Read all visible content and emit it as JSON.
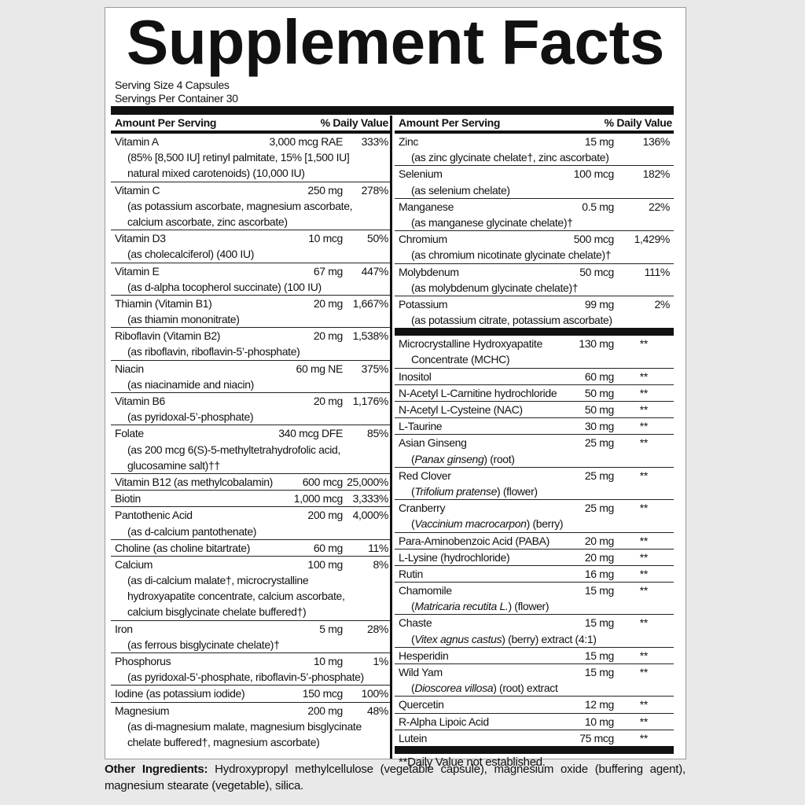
{
  "title": "Supplement Facts",
  "serving_size": "Serving Size 4 Capsules",
  "servings_per_container": "Servings Per Container 30",
  "header": {
    "amount_per_serving": "Amount Per Serving",
    "daily_value": "% Daily Value"
  },
  "left_rows": [
    {
      "name": "Vitamin A",
      "amount": "3,000 mcg RAE",
      "dv": "333%",
      "sub": [
        [
          "(85% [8,500 IU] retinyl palmitate, 15% [1,500 IU]"
        ],
        [
          "natural mixed carotenoids) (10,000 IU)"
        ]
      ]
    },
    {
      "name": "Vitamin C",
      "amount": "250 mg",
      "dv": "278%",
      "sub": [
        [
          "(as potassium ascorbate, magnesium ascorbate,"
        ],
        [
          "calcium ascorbate, zinc ascorbate)"
        ]
      ]
    },
    {
      "name": "Vitamin D3",
      "amount": "10 mcg",
      "dv": "50%",
      "sub": [
        [
          "(as cholecalciferol) (400 IU)"
        ]
      ]
    },
    {
      "name": "Vitamin E",
      "amount": "67 mg",
      "dv": "447%",
      "sub": [
        [
          "(as d-alpha tocopherol succinate) (100 IU)"
        ]
      ]
    },
    {
      "name": "Thiamin (Vitamin B1)",
      "amount": "20 mg",
      "dv": "1,667%",
      "sub": [
        [
          "(as thiamin mononitrate)"
        ]
      ]
    },
    {
      "name": "Riboflavin (Vitamin B2)",
      "amount": "20 mg",
      "dv": "1,538%",
      "sub": [
        [
          "(as riboflavin, riboflavin-5’-phosphate)"
        ]
      ]
    },
    {
      "name": "Niacin",
      "amount": "60 mg NE",
      "dv": "375%",
      "sub": [
        [
          "(as niacinamide and niacin)"
        ]
      ]
    },
    {
      "name": "Vitamin B6",
      "amount": "20 mg",
      "dv": "1,176%",
      "sub": [
        [
          "(as pyridoxal-5’-phosphate)"
        ]
      ]
    },
    {
      "name": "Folate",
      "amount": "340 mcg DFE",
      "dv": "85%",
      "sub": [
        [
          "(as 200 mcg 6(S)-5-methyltetrahydrofolic acid,"
        ],
        [
          "glucosamine salt)††"
        ]
      ]
    },
    {
      "name": "Vitamin B12 (as methylcobalamin)",
      "amount": "600 mcg",
      "dv": "25,000%",
      "sub": []
    },
    {
      "name": "Biotin",
      "amount": "1,000 mcg",
      "dv": "3,333%",
      "sub": []
    },
    {
      "name": "Pantothenic Acid",
      "amount": "200 mg",
      "dv": "4,000%",
      "sub": [
        [
          "(as d-calcium pantothenate)"
        ]
      ]
    },
    {
      "name": "Choline (as choline bitartrate)",
      "amount": "60 mg",
      "dv": "11%",
      "sub": []
    },
    {
      "name": "Calcium",
      "amount": "100 mg",
      "dv": "8%",
      "sub": [
        [
          "(as di-calcium malate†, microcrystalline"
        ],
        [
          "hydroxyapatite concentrate, calcium ascorbate,"
        ],
        [
          "calcium bisglycinate chelate buffered†)"
        ]
      ]
    },
    {
      "name": "Iron",
      "amount": "5 mg",
      "dv": "28%",
      "sub": [
        [
          "(as ferrous bisglycinate chelate)†"
        ]
      ]
    },
    {
      "name": "Phosphorus",
      "amount": "10 mg",
      "dv": "1%",
      "sub": [
        [
          "(as pyridoxal-5’-phosphate, riboflavin-5’-phosphate)"
        ]
      ]
    },
    {
      "name": "Iodine (as potassium iodide)",
      "amount": "150 mcg",
      "dv": "100%",
      "sub": []
    },
    {
      "name": "Magnesium",
      "amount": "200 mg",
      "dv": "48%",
      "sub": [
        [
          "(as di-magnesium malate, magnesium bisglycinate"
        ],
        [
          "chelate buffered†, magnesium ascorbate)"
        ]
      ]
    }
  ],
  "right_vitamin_rows": [
    {
      "name": "Zinc",
      "amount": "15 mg",
      "dv": "136%",
      "sub": [
        [
          "(as zinc glycinate chelate†, zinc ascorbate)"
        ]
      ]
    },
    {
      "name": "Selenium",
      "amount": "100 mcg",
      "dv": "182%",
      "sub": [
        [
          "(as selenium chelate)"
        ]
      ]
    },
    {
      "name": "Manganese",
      "amount": "0.5 mg",
      "dv": "22%",
      "sub": [
        [
          "(as manganese glycinate chelate)†"
        ]
      ]
    },
    {
      "name": "Chromium",
      "amount": "500 mcg",
      "dv": "1,429%",
      "sub": [
        [
          "(as chromium nicotinate glycinate chelate)†"
        ]
      ]
    },
    {
      "name": "Molybdenum",
      "amount": "50 mcg",
      "dv": "111%",
      "sub": [
        [
          "(as molybdenum glycinate chelate)†"
        ]
      ]
    },
    {
      "name": "Potassium",
      "amount": "99 mg",
      "dv": "2%",
      "sub": [
        [
          "(as potassium citrate, potassium ascorbate)"
        ]
      ]
    }
  ],
  "right_other_rows": [
    {
      "name": "Microcrystalline Hydroxyapatite",
      "amount": "130 mg",
      "dv": "**",
      "sub": [
        [
          "Concentrate (MCHC)"
        ]
      ]
    },
    {
      "name": "Inositol",
      "amount": "60 mg",
      "dv": "**",
      "sub": []
    },
    {
      "name": "N-Acetyl L-Carnitine hydrochloride",
      "amount": "50 mg",
      "dv": "**",
      "sub": []
    },
    {
      "name": "N-Acetyl L-Cysteine (NAC)",
      "amount": "50 mg",
      "dv": "**",
      "sub": []
    },
    {
      "name": "L-Taurine",
      "amount": "30 mg",
      "dv": "**",
      "sub": []
    },
    {
      "name": "Asian Ginseng",
      "amount": "25 mg",
      "dv": "**",
      "sub": [
        [
          "(",
          {
            "i": "Panax ginseng"
          },
          ") (root)"
        ]
      ]
    },
    {
      "name": "Red Clover",
      "amount": "25 mg",
      "dv": "**",
      "sub": [
        [
          "(",
          {
            "i": "Trifolium pratense"
          },
          ") (flower)"
        ]
      ]
    },
    {
      "name": "Cranberry",
      "amount": "25 mg",
      "dv": "**",
      "sub": [
        [
          "(",
          {
            "i": "Vaccinium macrocarpon"
          },
          ") (berry)"
        ]
      ]
    },
    {
      "name": "Para-Aminobenzoic Acid (PABA)",
      "amount": "20 mg",
      "dv": "**",
      "sub": []
    },
    {
      "name": "L-Lysine (hydrochloride)",
      "amount": "20 mg",
      "dv": "**",
      "sub": []
    },
    {
      "name": "Rutin",
      "amount": "16 mg",
      "dv": "**",
      "sub": []
    },
    {
      "name": "Chamomile",
      "amount": "15 mg",
      "dv": "**",
      "sub": [
        [
          "(",
          {
            "i": "Matricaria recutita L."
          },
          ") (flower)"
        ]
      ]
    },
    {
      "name": "Chaste",
      "amount": "15 mg",
      "dv": "**",
      "sub": [
        [
          "(",
          {
            "i": "Vitex agnus castus"
          },
          ") (berry) extract  (4:1)"
        ]
      ]
    },
    {
      "name": "Hesperidin",
      "amount": "15 mg",
      "dv": "**",
      "sub": []
    },
    {
      "name": "Wild Yam",
      "amount": "15 mg",
      "dv": "**",
      "sub": [
        [
          "(",
          {
            "i": "Dioscorea villosa"
          },
          ") (root) extract"
        ]
      ]
    },
    {
      "name": "Quercetin",
      "amount": "12 mg",
      "dv": "**",
      "sub": []
    },
    {
      "name": "R-Alpha Lipoic Acid",
      "amount": "10 mg",
      "dv": "**",
      "sub": []
    },
    {
      "name": "Lutein",
      "amount": "75 mcg",
      "dv": "**",
      "sub": []
    }
  ],
  "footnote": "**Daily Value not established.",
  "other_ingredients": {
    "label": "Other Ingredients:",
    "text": " Hydroxypropyl methylcellulose (vegetable capsule), magnesium oxide (buffering agent), magnesium stearate (vegetable), silica."
  }
}
